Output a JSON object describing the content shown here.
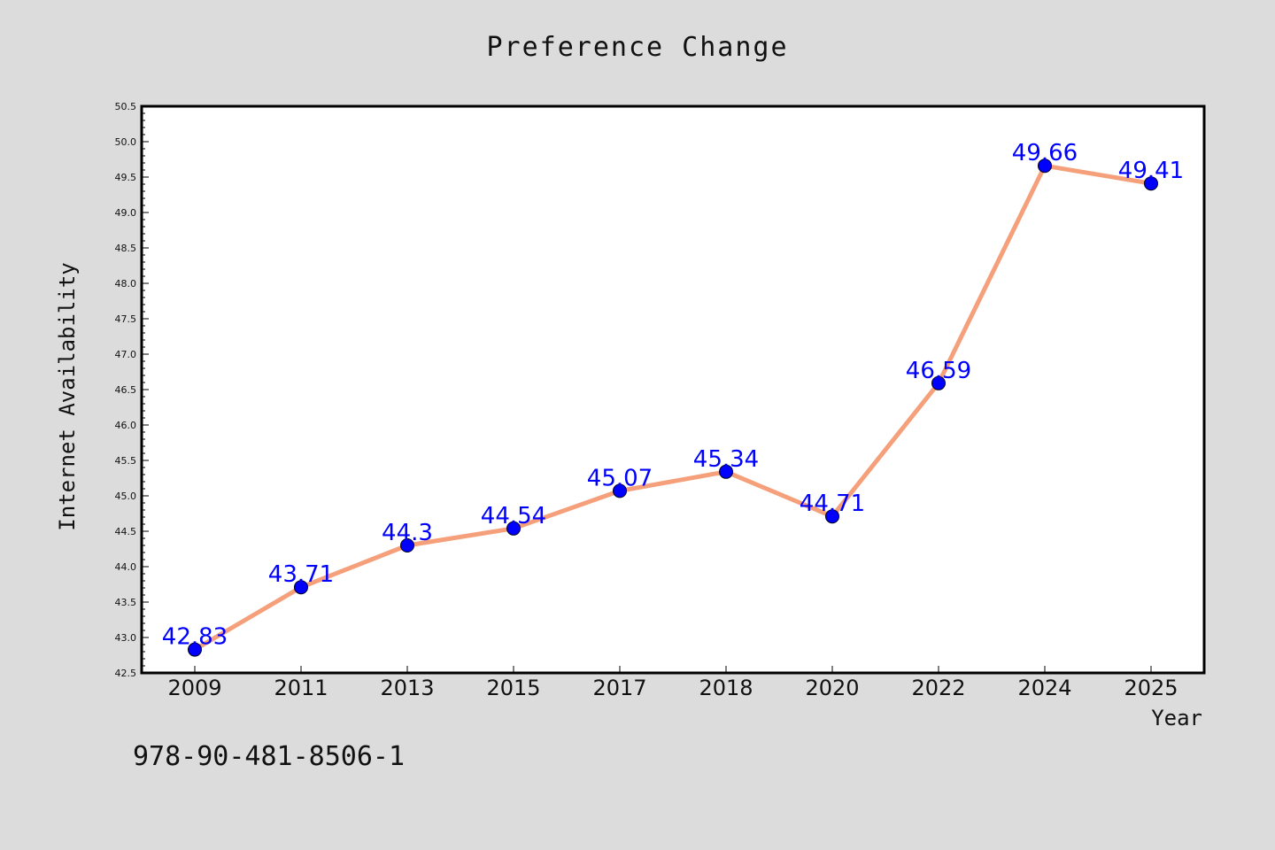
{
  "chart_data": {
    "type": "line",
    "title": "Preference Change",
    "xlabel": "Year",
    "ylabel": "Internet Availability",
    "categories": [
      "2009",
      "2011",
      "2013",
      "2015",
      "2017",
      "2018",
      "2020",
      "2022",
      "2024",
      "2025"
    ],
    "series": [
      {
        "values": [
          42.83,
          43.71,
          44.3,
          44.54,
          45.07,
          45.34,
          44.71,
          46.59,
          49.66,
          49.41
        ],
        "data_labels": [
          "42.83",
          "43.71",
          "44.3",
          "44.54",
          "45.07",
          "45.34",
          "44.71",
          "46.59",
          "49.66",
          "49.41"
        ]
      }
    ],
    "ylim": [
      42.5,
      50.5
    ],
    "yticks": [
      "42.5",
      "43.0",
      "43.5",
      "44.0",
      "44.5",
      "45.0",
      "45.5",
      "46.0",
      "46.5",
      "47.0",
      "47.5",
      "48.0",
      "48.5",
      "49.0",
      "49.5",
      "50.0",
      "50.5"
    ],
    "grid": false,
    "legend": "none",
    "line_color": "#f5a07a",
    "marker_color": "#0000ff",
    "label_color": "#0000ff",
    "background": "#dcdcdc",
    "plot_background": "#ffffff"
  },
  "footer": {
    "isbn": "978-90-481-8506-1"
  }
}
